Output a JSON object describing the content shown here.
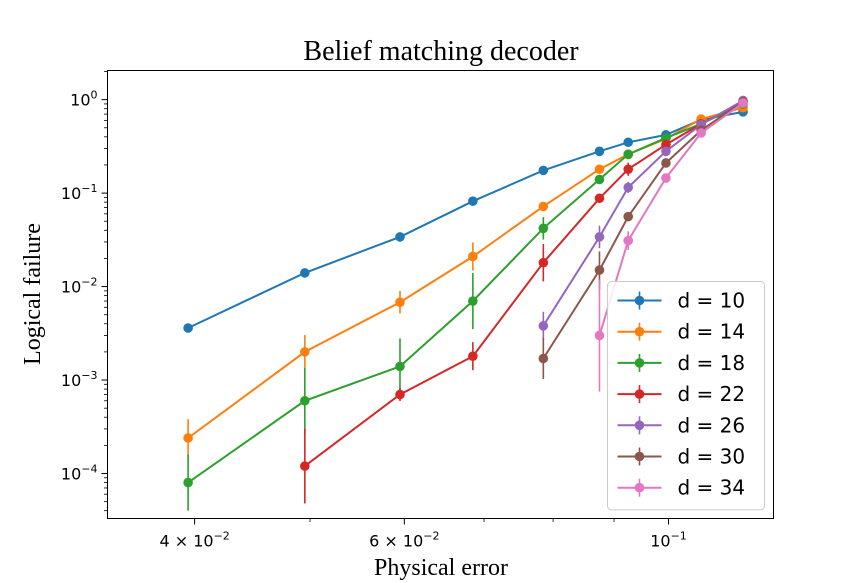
{
  "chart_data": {
    "type": "line",
    "title": "Belief matching decoder",
    "xlabel": "Physical error",
    "ylabel": "Logical failure",
    "xscale": "log",
    "yscale": "log",
    "xlim": [
      0.0338,
      0.1225
    ],
    "ylim": [
      3.3e-05,
      2.05
    ],
    "grid": false,
    "legend_position": "lower-right",
    "x_ticks": [
      {
        "value": 0.04,
        "base": "4 × 10",
        "exp": "−2"
      },
      {
        "value": 0.06,
        "base": "6 × 10",
        "exp": "−2"
      },
      {
        "value": 0.1,
        "base": "10",
        "exp": "−1"
      }
    ],
    "y_ticks": [
      {
        "value": 1,
        "base": "10",
        "exp": "0"
      },
      {
        "value": 0.1,
        "base": "10",
        "exp": "−1"
      },
      {
        "value": 0.01,
        "base": "10",
        "exp": "−2"
      },
      {
        "value": 0.001,
        "base": "10",
        "exp": "−3"
      },
      {
        "value": 0.0001,
        "base": "10",
        "exp": "−4"
      }
    ],
    "series": [
      {
        "name": "d = 10",
        "color": "#1f77b4",
        "x": [
          0.0395,
          0.0495,
          0.0595,
          0.0685,
          0.0785,
          0.0875,
          0.0925,
          0.0995,
          0.1065,
          0.1155
        ],
        "y": [
          0.0036,
          0.014,
          0.034,
          0.082,
          0.175,
          0.28,
          0.35,
          0.42,
          0.61,
          0.74
        ],
        "err": [
          0,
          0,
          0,
          0,
          0,
          0,
          0,
          0,
          0,
          0
        ]
      },
      {
        "name": "d = 14",
        "color": "#ff7f0e",
        "x": [
          0.0395,
          0.0495,
          0.0595,
          0.0685,
          0.0785,
          0.0875,
          0.0925,
          0.0995,
          0.1065,
          0.1155
        ],
        "y": [
          0.00024,
          0.002,
          0.0068,
          0.021,
          0.072,
          0.18,
          0.26,
          0.38,
          0.62,
          0.82
        ],
        "err": [
          0.2,
          0.18,
          0.12,
          0.15,
          0,
          0,
          0,
          0,
          0,
          0
        ]
      },
      {
        "name": "d = 18",
        "color": "#2ca02c",
        "x": [
          0.0395,
          0.0495,
          0.0595,
          0.0685,
          0.0785,
          0.0875,
          0.0925,
          0.0995,
          0.1065,
          0.1155
        ],
        "y": [
          8e-05,
          0.0006,
          0.0014,
          0.007,
          0.042,
          0.14,
          0.26,
          0.39,
          0.55,
          0.9
        ],
        "err": [
          0.3,
          0.35,
          0.3,
          0.3,
          0.12,
          0,
          0,
          0,
          0,
          0
        ]
      },
      {
        "name": "d = 22",
        "color": "#d62728",
        "x": [
          0.0495,
          0.0595,
          0.0685,
          0.0785,
          0.0875,
          0.0925,
          0.0995,
          0.1065,
          0.1155
        ],
        "y": [
          0.00012,
          0.0007,
          0.0018,
          0.018,
          0.088,
          0.18,
          0.33,
          0.55,
          0.95
        ],
        "err": [
          0.4,
          0.07,
          0.15,
          0.2,
          0,
          0.07,
          0,
          0,
          0
        ]
      },
      {
        "name": "d = 26",
        "color": "#9467bd",
        "x": [
          0.0785,
          0.0875,
          0.0925,
          0.0995,
          0.1065,
          0.1155
        ],
        "y": [
          0.0038,
          0.034,
          0.115,
          0.28,
          0.54,
          0.98
        ],
        "err": [
          0.15,
          0.12,
          0.06,
          0,
          0,
          0
        ]
      },
      {
        "name": "d = 30",
        "color": "#8c564b",
        "x": [
          0.0785,
          0.0875,
          0.0925,
          0.0995,
          0.1065,
          0.1155
        ],
        "y": [
          0.0017,
          0.015,
          0.056,
          0.21,
          0.47,
          0.95
        ],
        "err": [
          0.22,
          0.2,
          0,
          0,
          0,
          0
        ]
      },
      {
        "name": "d = 34",
        "color": "#e377c2",
        "x": [
          0.0875,
          0.0925,
          0.0995,
          0.1065,
          0.1155
        ],
        "y": [
          0.003,
          0.031,
          0.145,
          0.44,
          0.92
        ],
        "err": [
          0.6,
          0.1,
          0.05,
          0,
          0
        ]
      }
    ]
  }
}
